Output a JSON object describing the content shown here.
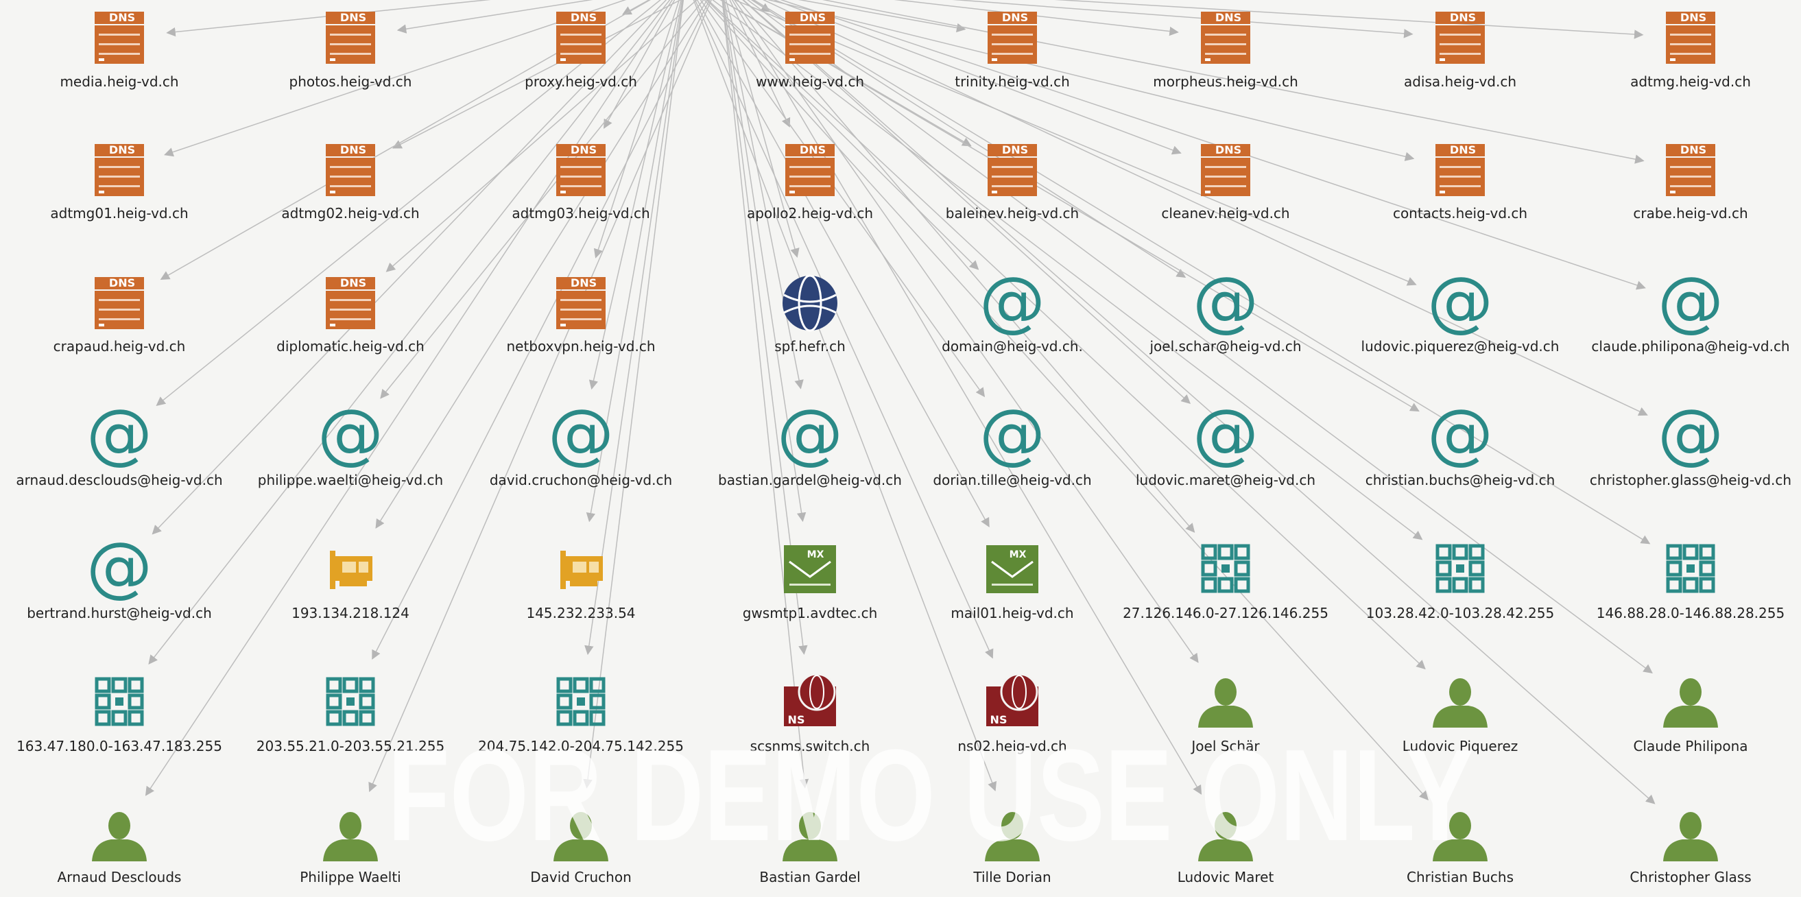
{
  "watermark": "FOR DEMO USE ONLY",
  "icon_labels": {
    "dns": "DNS",
    "mx": "MX",
    "ns": "NS"
  },
  "nodes": [
    {
      "label": "media.heig-vd.ch",
      "icon": "dns"
    },
    {
      "label": "photos.heig-vd.ch",
      "icon": "dns"
    },
    {
      "label": "proxy.heig-vd.ch",
      "icon": "dns"
    },
    {
      "label": "www.heig-vd.ch",
      "icon": "dns"
    },
    {
      "label": "trinity.heig-vd.ch",
      "icon": "dns"
    },
    {
      "label": "morpheus.heig-vd.ch",
      "icon": "dns"
    },
    {
      "label": "adisa.heig-vd.ch",
      "icon": "dns"
    },
    {
      "label": "adtmg.heig-vd.ch",
      "icon": "dns"
    },
    {
      "label": "adtmg01.heig-vd.ch",
      "icon": "dns"
    },
    {
      "label": "adtmg02.heig-vd.ch",
      "icon": "dns"
    },
    {
      "label": "adtmg03.heig-vd.ch",
      "icon": "dns"
    },
    {
      "label": "apollo2.heig-vd.ch",
      "icon": "dns"
    },
    {
      "label": "baleinev.heig-vd.ch",
      "icon": "dns"
    },
    {
      "label": "cleanev.heig-vd.ch",
      "icon": "dns"
    },
    {
      "label": "contacts.heig-vd.ch",
      "icon": "dns"
    },
    {
      "label": "crabe.heig-vd.ch",
      "icon": "dns"
    },
    {
      "label": "crapaud.heig-vd.ch",
      "icon": "dns"
    },
    {
      "label": "diplomatic.heig-vd.ch",
      "icon": "dns"
    },
    {
      "label": "netboxvpn.heig-vd.ch",
      "icon": "dns"
    },
    {
      "label": "spf.hefr.ch",
      "icon": "globe"
    },
    {
      "label": "domain@heig-vd.ch.",
      "icon": "email"
    },
    {
      "label": "joel.schar@heig-vd.ch",
      "icon": "email"
    },
    {
      "label": "ludovic.piquerez@heig-vd.ch",
      "icon": "email"
    },
    {
      "label": "claude.philipona@heig-vd.ch",
      "icon": "email"
    },
    {
      "label": "arnaud.desclouds@heig-vd.ch",
      "icon": "email"
    },
    {
      "label": "philippe.waelti@heig-vd.ch",
      "icon": "email"
    },
    {
      "label": "david.cruchon@heig-vd.ch",
      "icon": "email"
    },
    {
      "label": "bastian.gardel@heig-vd.ch",
      "icon": "email"
    },
    {
      "label": "dorian.tille@heig-vd.ch",
      "icon": "email"
    },
    {
      "label": "ludovic.maret@heig-vd.ch",
      "icon": "email"
    },
    {
      "label": "christian.buchs@heig-vd.ch",
      "icon": "email"
    },
    {
      "label": "christopher.glass@heig-vd.ch",
      "icon": "email"
    },
    {
      "label": "bertrand.hurst@heig-vd.ch",
      "icon": "email"
    },
    {
      "label": "193.134.218.124",
      "icon": "ip"
    },
    {
      "label": "145.232.233.54",
      "icon": "ip"
    },
    {
      "label": "gwsmtp1.avdtec.ch",
      "icon": "mx"
    },
    {
      "label": "mail01.heig-vd.ch",
      "icon": "mx"
    },
    {
      "label": "27.126.146.0-27.126.146.255",
      "icon": "netblock"
    },
    {
      "label": "103.28.42.0-103.28.42.255",
      "icon": "netblock"
    },
    {
      "label": "146.88.28.0-146.88.28.255",
      "icon": "netblock"
    },
    {
      "label": "163.47.180.0-163.47.183.255",
      "icon": "netblock"
    },
    {
      "label": "203.55.21.0-203.55.21.255",
      "icon": "netblock"
    },
    {
      "label": "204.75.142.0-204.75.142.255",
      "icon": "netblock"
    },
    {
      "label": "scsnms.switch.ch",
      "icon": "ns"
    },
    {
      "label": "ns02.heig-vd.ch",
      "icon": "ns"
    },
    {
      "label": "Joel Schär",
      "icon": "person"
    },
    {
      "label": "Ludovic Piquerez",
      "icon": "person"
    },
    {
      "label": "Claude Philipona",
      "icon": "person"
    },
    {
      "label": "Arnaud Desclouds",
      "icon": "person"
    },
    {
      "label": "Philippe Waelti",
      "icon": "person"
    },
    {
      "label": "David Cruchon",
      "icon": "person"
    },
    {
      "label": "Bastian Gardel",
      "icon": "person"
    },
    {
      "label": "Tille Dorian",
      "icon": "person"
    },
    {
      "label": "Ludovic Maret",
      "icon": "person"
    },
    {
      "label": "Christian Buchs",
      "icon": "person"
    },
    {
      "label": "Christopher Glass",
      "icon": "person"
    }
  ]
}
